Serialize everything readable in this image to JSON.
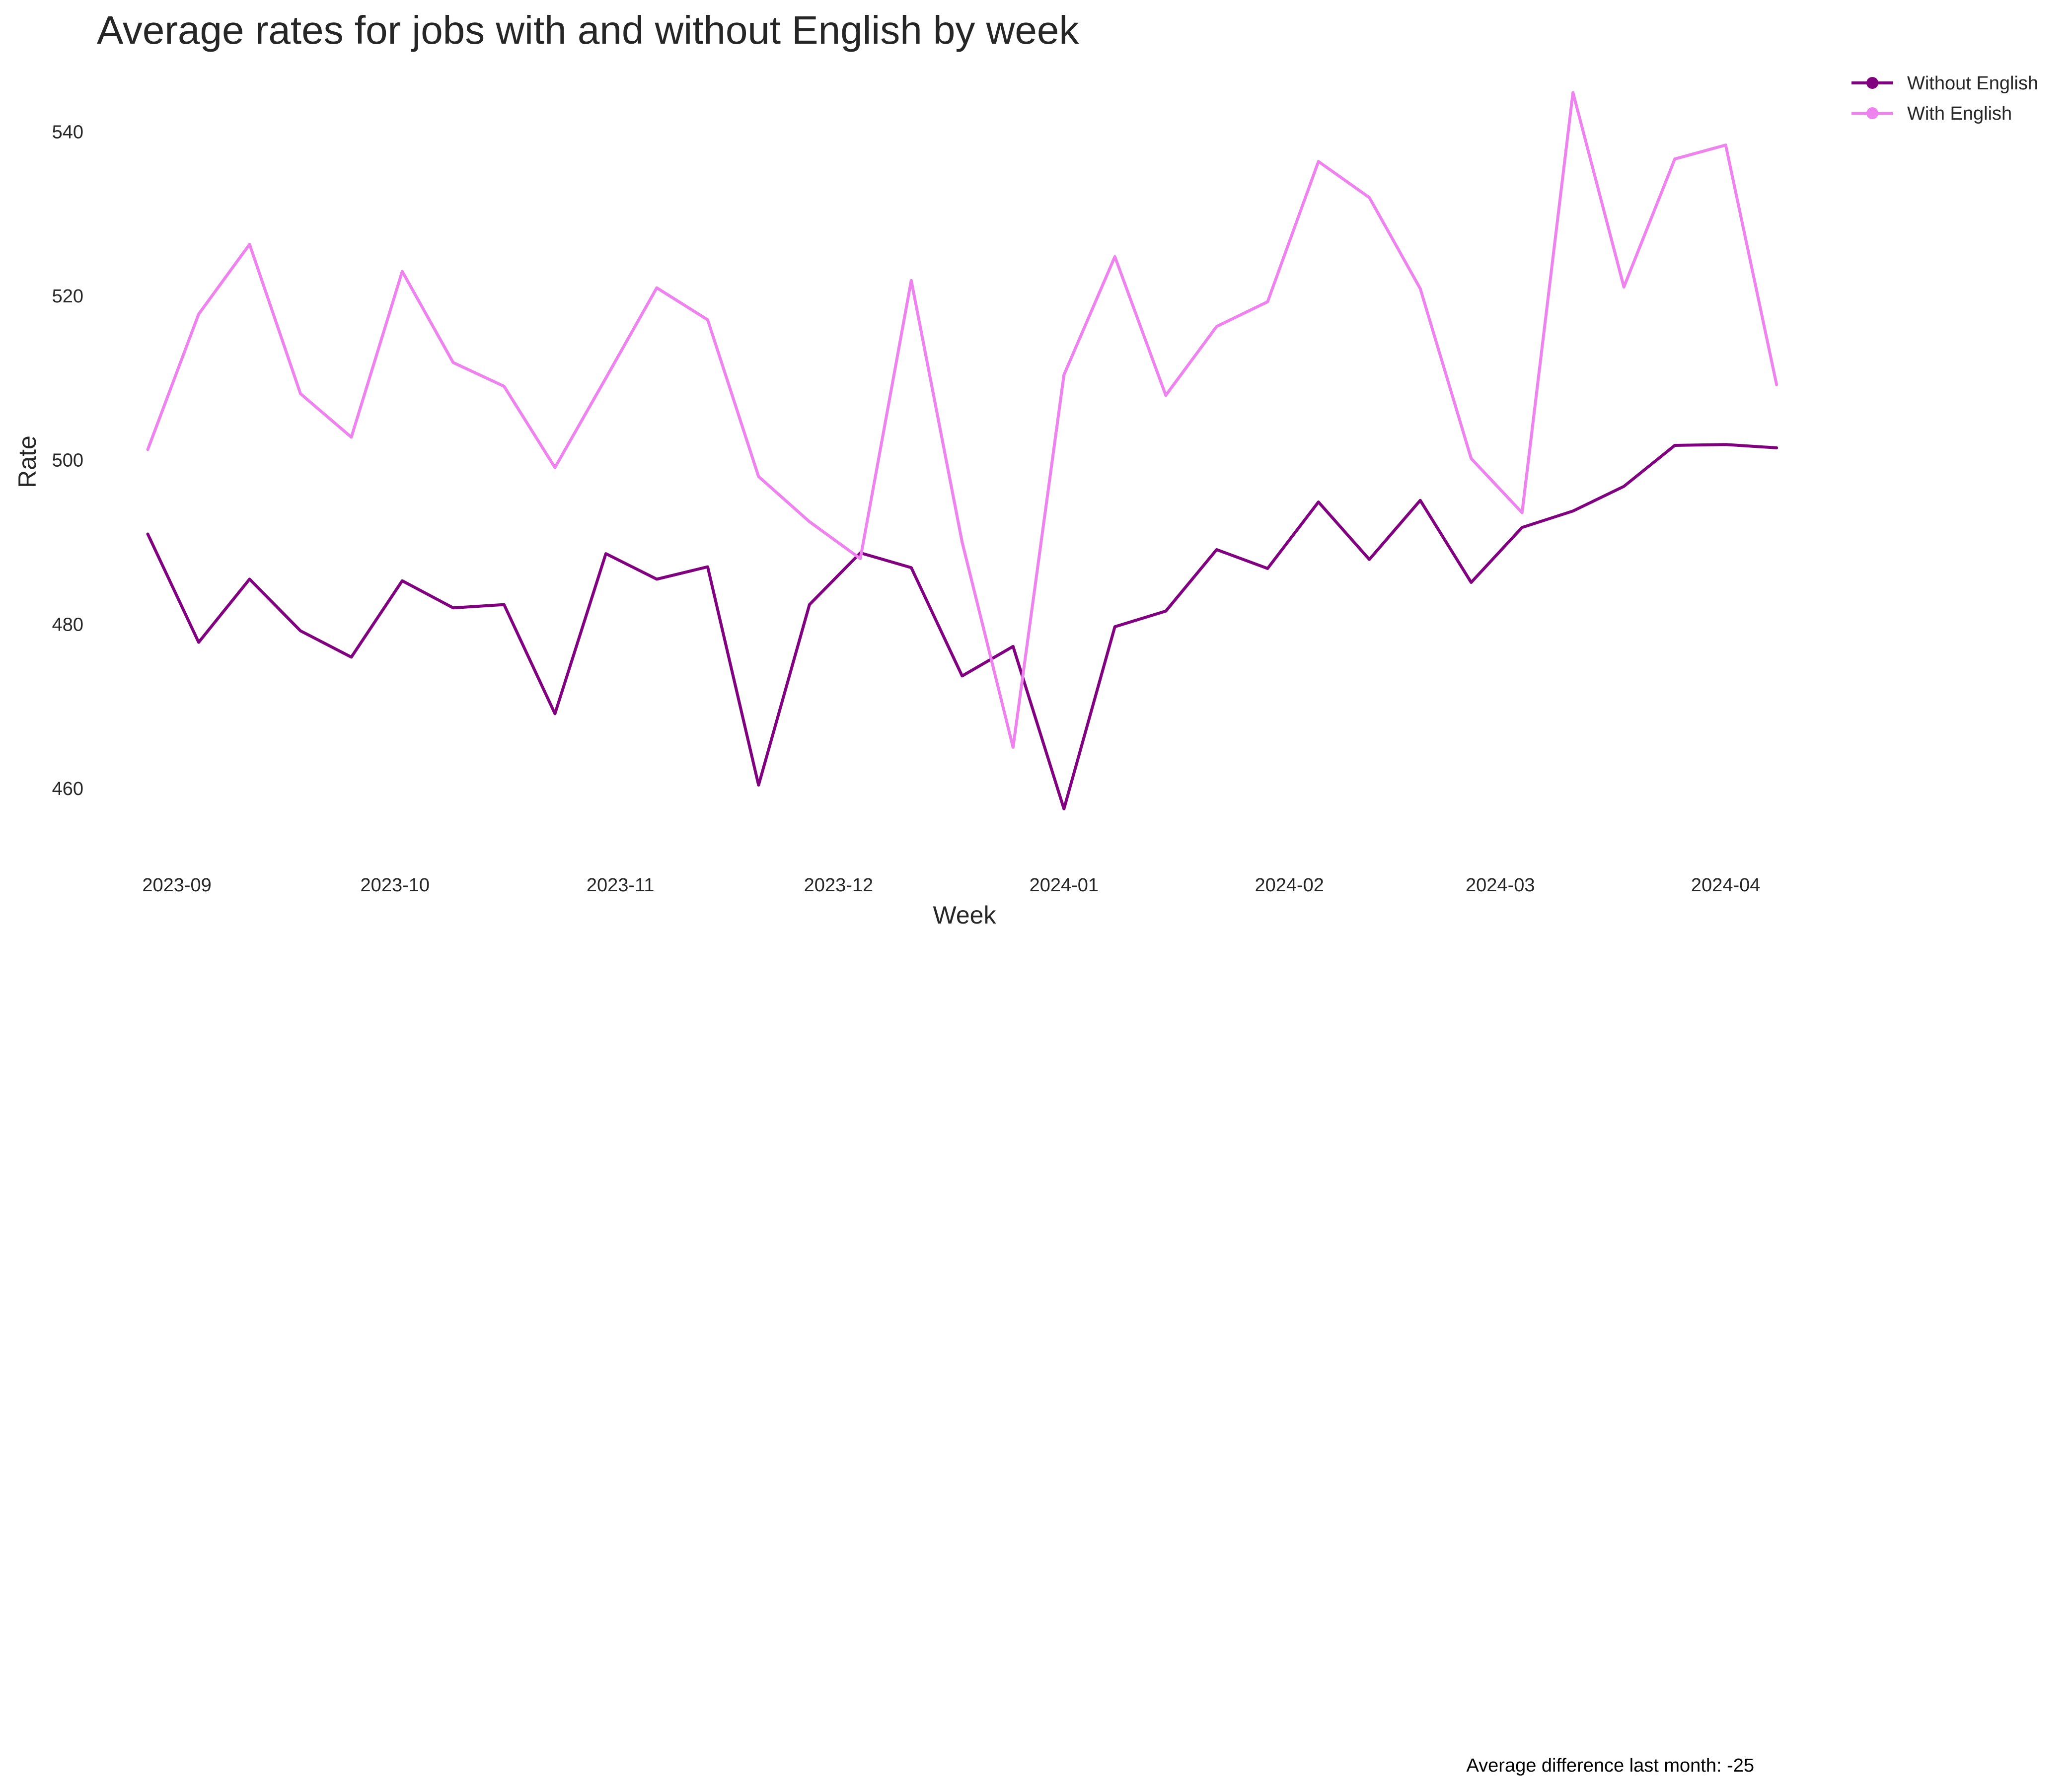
{
  "chart_data": {
    "type": "line",
    "title": "Average rates for jobs with and without English by week",
    "xlabel": "Week",
    "ylabel": "Rate",
    "x": [
      "2023-08-28",
      "2023-09-04",
      "2023-09-11",
      "2023-09-18",
      "2023-09-25",
      "2023-10-02",
      "2023-10-09",
      "2023-10-16",
      "2023-10-23",
      "2023-10-30",
      "2023-11-06",
      "2023-11-13",
      "2023-11-20",
      "2023-11-27",
      "2023-12-04",
      "2023-12-11",
      "2023-12-18",
      "2023-12-25",
      "2024-01-01",
      "2024-01-08",
      "2024-01-15",
      "2024-01-22",
      "2024-01-29",
      "2024-02-05",
      "2024-02-12",
      "2024-02-19",
      "2024-02-26",
      "2024-03-04",
      "2024-03-11",
      "2024-03-18",
      "2024-03-25",
      "2024-04-01",
      "2024-04-08"
    ],
    "xlim": [
      "2023-08-21",
      "2024-04-14"
    ],
    "x_ticks": [
      "2023-09-01",
      "2023-10-01",
      "2023-11-01",
      "2023-12-01",
      "2024-01-01",
      "2024-02-01",
      "2024-03-01",
      "2024-04-01"
    ],
    "x_tick_labels": [
      "2023-09",
      "2023-10",
      "2023-11",
      "2023-12",
      "2024-01",
      "2024-02",
      "2024-03",
      "2024-04"
    ],
    "y_ticks": [
      460,
      480,
      500,
      520,
      540
    ],
    "ylim": [
      452,
      547
    ],
    "grid": false,
    "legend_position": "top-right",
    "series": [
      {
        "name": "Without English",
        "color": "#800080",
        "values": [
          491.0,
          477.8,
          485.5,
          479.2,
          476.0,
          485.3,
          482.0,
          482.4,
          469.1,
          488.6,
          485.5,
          487.0,
          460.4,
          482.4,
          488.7,
          486.9,
          473.7,
          477.3,
          457.5,
          479.7,
          481.6,
          489.1,
          486.8,
          494.9,
          487.9,
          495.1,
          485.1,
          491.8,
          493.8,
          496.8,
          501.8,
          501.9,
          501.5
        ]
      },
      {
        "name": "With English",
        "color": "#ee82ee",
        "values": [
          501.3,
          517.8,
          526.3,
          508.1,
          502.8,
          523.0,
          511.9,
          509.0,
          499.1,
          510.0,
          521.0,
          517.1,
          498.0,
          492.5,
          488.0,
          521.9,
          490.0,
          465.0,
          510.4,
          524.8,
          507.9,
          516.3,
          519.3,
          536.4,
          532.0,
          520.9,
          500.2,
          493.6,
          544.8,
          521.1,
          536.7,
          538.4,
          509.2
        ]
      }
    ],
    "annotation": "Average difference last month: -25"
  }
}
